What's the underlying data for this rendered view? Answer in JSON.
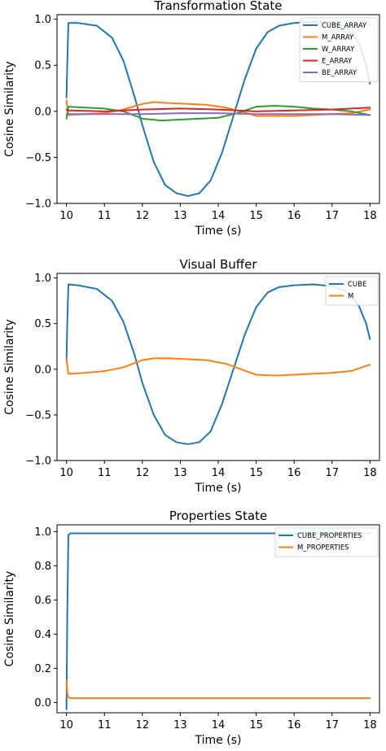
{
  "chart_data": [
    {
      "type": "line",
      "title": "Transformation State",
      "xlabel": "Time (s)",
      "ylabel": "Cosine Similarity",
      "xlim": [
        9.75,
        18.25
      ],
      "ylim": [
        -1.0,
        1.05
      ],
      "xticks": [
        "10",
        "11",
        "12",
        "13",
        "14",
        "15",
        "16",
        "17",
        "18"
      ],
      "yticks": [
        "1.0",
        "0.5",
        "0.0",
        "−0.5",
        "−1.0"
      ],
      "ytick_values": [
        1.0,
        0.5,
        0.0,
        -0.5,
        -1.0
      ],
      "legend_position": "top-right",
      "series": [
        {
          "name": "CUBE_ARRAY",
          "color": "#1f77b4",
          "x": [
            10.0,
            10.02,
            10.05,
            10.3,
            10.8,
            11.2,
            11.5,
            11.8,
            12.0,
            12.3,
            12.6,
            12.9,
            13.2,
            13.5,
            13.8,
            14.1,
            14.4,
            14.7,
            15.0,
            15.3,
            15.6,
            16.0,
            16.5,
            17.0,
            17.4,
            17.7,
            17.9,
            18.0
          ],
          "y": [
            0.15,
            0.5,
            0.96,
            0.96,
            0.93,
            0.8,
            0.55,
            0.15,
            -0.15,
            -0.55,
            -0.8,
            -0.89,
            -0.92,
            -0.89,
            -0.75,
            -0.45,
            -0.05,
            0.35,
            0.68,
            0.86,
            0.93,
            0.96,
            0.97,
            0.97,
            0.9,
            0.75,
            0.5,
            0.3
          ]
        },
        {
          "name": "M_ARRAY",
          "color": "#ff7f0e",
          "x": [
            10.0,
            10.05,
            10.5,
            11.0,
            11.5,
            12.0,
            12.3,
            12.7,
            13.2,
            13.7,
            14.2,
            14.6,
            15.0,
            15.5,
            16.0,
            16.5,
            17.0,
            17.5,
            18.0
          ],
          "y": [
            0.12,
            -0.04,
            -0.03,
            -0.02,
            0.02,
            0.08,
            0.1,
            0.09,
            0.08,
            0.07,
            0.04,
            0.0,
            -0.05,
            -0.05,
            -0.05,
            -0.04,
            -0.03,
            -0.02,
            0.02
          ]
        },
        {
          "name": "W_ARRAY",
          "color": "#2ca02c",
          "x": [
            10.0,
            10.05,
            10.5,
            11.0,
            11.5,
            12.0,
            12.5,
            13.0,
            13.5,
            14.0,
            14.5,
            15.0,
            15.5,
            16.0,
            16.5,
            17.0,
            17.5,
            18.0
          ],
          "y": [
            -0.08,
            0.05,
            0.04,
            0.03,
            0.0,
            -0.08,
            -0.1,
            -0.09,
            -0.08,
            -0.07,
            -0.02,
            0.05,
            0.06,
            0.05,
            0.03,
            0.02,
            0.0,
            -0.04
          ]
        },
        {
          "name": "E_ARRAY",
          "color": "#d62728",
          "x": [
            10.0,
            10.05,
            11.0,
            12.0,
            13.0,
            14.0,
            15.0,
            16.0,
            17.0,
            18.0
          ],
          "y": [
            0.02,
            0.01,
            0.0,
            0.02,
            0.03,
            0.02,
            0.0,
            0.01,
            0.02,
            0.04
          ]
        },
        {
          "name": "BE_ARRAY",
          "color": "#9467bd",
          "x": [
            10.0,
            10.05,
            11.0,
            12.0,
            13.0,
            14.0,
            15.0,
            16.0,
            17.0,
            18.0
          ],
          "y": [
            -0.03,
            -0.03,
            -0.03,
            -0.03,
            -0.02,
            -0.02,
            -0.03,
            -0.03,
            -0.03,
            -0.04
          ]
        }
      ]
    },
    {
      "type": "line",
      "title": "Visual Buffer",
      "xlabel": "Time (s)",
      "ylabel": "Cosine Similarity",
      "xlim": [
        9.75,
        18.25
      ],
      "ylim": [
        -1.0,
        1.05
      ],
      "xticks": [
        "10",
        "11",
        "12",
        "13",
        "14",
        "15",
        "16",
        "17",
        "18"
      ],
      "yticks": [
        "1.0",
        "0.5",
        "0.0",
        "−0.5",
        "−1.0"
      ],
      "ytick_values": [
        1.0,
        0.5,
        0.0,
        -0.5,
        -1.0
      ],
      "legend_position": "top-right",
      "series": [
        {
          "name": "CUBE",
          "color": "#1f77b4",
          "x": [
            10.0,
            10.02,
            10.05,
            10.3,
            10.8,
            11.2,
            11.5,
            11.8,
            12.0,
            12.3,
            12.6,
            12.9,
            13.2,
            13.5,
            13.8,
            14.1,
            14.4,
            14.7,
            15.0,
            15.3,
            15.6,
            16.0,
            16.5,
            17.0,
            17.4,
            17.7,
            17.9,
            18.0
          ],
          "y": [
            0.1,
            0.5,
            0.93,
            0.92,
            0.88,
            0.75,
            0.52,
            0.15,
            -0.15,
            -0.5,
            -0.72,
            -0.8,
            -0.82,
            -0.8,
            -0.68,
            -0.38,
            0.0,
            0.38,
            0.68,
            0.84,
            0.9,
            0.92,
            0.93,
            0.91,
            0.85,
            0.7,
            0.5,
            0.33
          ]
        },
        {
          "name": "M",
          "color": "#ff7f0e",
          "x": [
            10.0,
            10.05,
            10.5,
            11.0,
            11.5,
            12.0,
            12.3,
            12.7,
            13.2,
            13.7,
            14.2,
            14.6,
            15.0,
            15.5,
            16.0,
            16.5,
            17.0,
            17.5,
            18.0
          ],
          "y": [
            0.12,
            -0.05,
            -0.04,
            -0.02,
            0.02,
            0.1,
            0.12,
            0.12,
            0.11,
            0.1,
            0.06,
            0.0,
            -0.06,
            -0.07,
            -0.06,
            -0.05,
            -0.04,
            -0.02,
            0.05
          ]
        }
      ]
    },
    {
      "type": "line",
      "title": "Properties State",
      "xlabel": "Time (s)",
      "ylabel": "Cosine Similarity",
      "xlim": [
        9.75,
        18.25
      ],
      "ylim": [
        -0.06,
        1.04
      ],
      "xticks": [
        "10",
        "11",
        "12",
        "13",
        "14",
        "15",
        "16",
        "17",
        "18"
      ],
      "yticks": [
        "1.0",
        "0.8",
        "0.6",
        "0.4",
        "0.2",
        "0.0"
      ],
      "ytick_values": [
        1.0,
        0.8,
        0.6,
        0.4,
        0.2,
        0.0
      ],
      "legend_position": "top-right",
      "series": [
        {
          "name": "CUBE_PROPERTIES",
          "color": "#1f77b4",
          "x": [
            10.0,
            10.02,
            10.05,
            10.1,
            11.0,
            12.0,
            13.0,
            14.0,
            15.0,
            16.0,
            17.0,
            18.0
          ],
          "y": [
            -0.04,
            0.5,
            0.98,
            0.99,
            0.99,
            0.99,
            0.99,
            0.99,
            0.99,
            0.99,
            0.99,
            0.99
          ]
        },
        {
          "name": "M_PROPERTIES",
          "color": "#ff7f0e",
          "x": [
            10.0,
            10.02,
            10.05,
            10.1,
            11.0,
            12.0,
            13.0,
            14.0,
            15.0,
            16.0,
            17.0,
            18.0
          ],
          "y": [
            0.13,
            0.06,
            0.03,
            0.025,
            0.025,
            0.025,
            0.025,
            0.025,
            0.025,
            0.025,
            0.025,
            0.025
          ]
        }
      ]
    }
  ]
}
